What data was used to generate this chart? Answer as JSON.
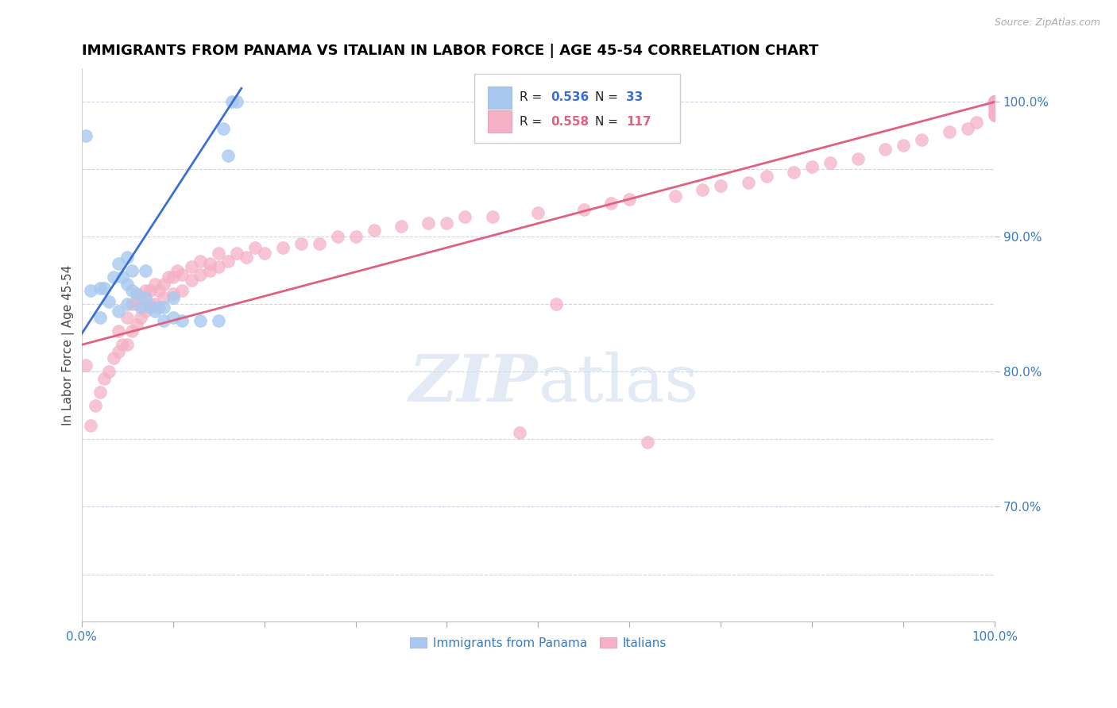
{
  "title": "IMMIGRANTS FROM PANAMA VS ITALIAN IN LABOR FORCE | AGE 45-54 CORRELATION CHART",
  "source": "Source: ZipAtlas.com",
  "ylabel": "In Labor Force | Age 45-54",
  "xlim": [
    0.0,
    1.0
  ],
  "ylim": [
    0.615,
    1.025
  ],
  "yticks": [
    0.7,
    0.8,
    0.9,
    1.0
  ],
  "yticklabels": [
    "70.0%",
    "80.0%",
    "90.0%",
    "100.0%"
  ],
  "xticks": [
    0.0,
    0.1,
    0.2,
    0.3,
    0.4,
    0.5,
    0.6,
    0.7,
    0.8,
    0.9,
    1.0
  ],
  "xticklabels": [
    "0.0%",
    "",
    "",
    "",
    "",
    "",
    "",
    "",
    "",
    "",
    "100.0%"
  ],
  "legend_R_blue": "0.536",
  "legend_N_blue": "33",
  "legend_R_pink": "0.558",
  "legend_N_pink": "117",
  "blue_color": "#a8c8f0",
  "pink_color": "#f5b0c5",
  "blue_line_color": "#3b6fd4",
  "pink_line_color": "#e06080",
  "watermark_color": "#d0ddf0",
  "title_fontsize": 13,
  "label_fontsize": 11,
  "tick_fontsize": 11,
  "blue_scatter_x": [
    0.005,
    0.01,
    0.02,
    0.02,
    0.025,
    0.03,
    0.035,
    0.04,
    0.04,
    0.045,
    0.05,
    0.05,
    0.05,
    0.055,
    0.055,
    0.06,
    0.065,
    0.07,
    0.07,
    0.075,
    0.08,
    0.085,
    0.09,
    0.09,
    0.1,
    0.1,
    0.11,
    0.13,
    0.15,
    0.155,
    0.16,
    0.165,
    0.17
  ],
  "blue_scatter_y": [
    0.975,
    0.86,
    0.84,
    0.862,
    0.862,
    0.852,
    0.87,
    0.845,
    0.88,
    0.87,
    0.85,
    0.865,
    0.885,
    0.86,
    0.875,
    0.858,
    0.848,
    0.855,
    0.875,
    0.848,
    0.845,
    0.848,
    0.838,
    0.848,
    0.84,
    0.855,
    0.838,
    0.838,
    0.838,
    0.98,
    0.96,
    1.0,
    1.0
  ],
  "pink_scatter_x": [
    0.005,
    0.01,
    0.015,
    0.02,
    0.025,
    0.03,
    0.035,
    0.04,
    0.04,
    0.045,
    0.05,
    0.05,
    0.055,
    0.055,
    0.06,
    0.06,
    0.065,
    0.065,
    0.07,
    0.07,
    0.075,
    0.075,
    0.08,
    0.08,
    0.085,
    0.09,
    0.09,
    0.095,
    0.1,
    0.1,
    0.105,
    0.11,
    0.11,
    0.12,
    0.12,
    0.13,
    0.13,
    0.14,
    0.14,
    0.15,
    0.15,
    0.16,
    0.17,
    0.18,
    0.19,
    0.2,
    0.22,
    0.24,
    0.26,
    0.28,
    0.3,
    0.32,
    0.35,
    0.38,
    0.4,
    0.42,
    0.45,
    0.48,
    0.5,
    0.52,
    0.55,
    0.58,
    0.6,
    0.62,
    0.65,
    0.68,
    0.7,
    0.73,
    0.75,
    0.78,
    0.8,
    0.82,
    0.85,
    0.88,
    0.9,
    0.92,
    0.95,
    0.97,
    0.98,
    1.0,
    1.0,
    1.0,
    1.0,
    1.0,
    1.0,
    1.0,
    1.0,
    1.0,
    1.0,
    1.0,
    1.0,
    1.0,
    1.0,
    1.0,
    1.0,
    1.0,
    1.0,
    1.0,
    1.0,
    1.0,
    1.0,
    1.0,
    1.0,
    1.0,
    1.0,
    1.0,
    1.0,
    1.0,
    1.0,
    1.0,
    1.0,
    1.0,
    1.0,
    1.0,
    1.0,
    1.0,
    1.0
  ],
  "pink_scatter_y": [
    0.805,
    0.76,
    0.775,
    0.785,
    0.795,
    0.8,
    0.81,
    0.815,
    0.83,
    0.82,
    0.82,
    0.84,
    0.83,
    0.85,
    0.835,
    0.85,
    0.84,
    0.855,
    0.845,
    0.86,
    0.85,
    0.86,
    0.85,
    0.865,
    0.86,
    0.855,
    0.865,
    0.87,
    0.858,
    0.87,
    0.875,
    0.86,
    0.872,
    0.868,
    0.878,
    0.872,
    0.882,
    0.875,
    0.88,
    0.878,
    0.888,
    0.882,
    0.888,
    0.885,
    0.892,
    0.888,
    0.892,
    0.895,
    0.895,
    0.9,
    0.9,
    0.905,
    0.908,
    0.91,
    0.91,
    0.915,
    0.915,
    0.755,
    0.918,
    0.85,
    0.92,
    0.925,
    0.928,
    0.748,
    0.93,
    0.935,
    0.938,
    0.94,
    0.945,
    0.948,
    0.952,
    0.955,
    0.958,
    0.965,
    0.968,
    0.972,
    0.978,
    0.98,
    0.985,
    0.99,
    0.99,
    0.992,
    0.995,
    0.997,
    1.0,
    1.0,
    1.0,
    1.0,
    1.0,
    1.0,
    1.0,
    1.0,
    1.0,
    1.0,
    1.0,
    1.0,
    1.0,
    1.0,
    1.0,
    1.0,
    1.0,
    1.0,
    1.0,
    1.0,
    1.0,
    1.0,
    1.0,
    1.0,
    1.0,
    1.0,
    1.0,
    1.0,
    1.0,
    1.0,
    1.0,
    1.0,
    1.0
  ]
}
